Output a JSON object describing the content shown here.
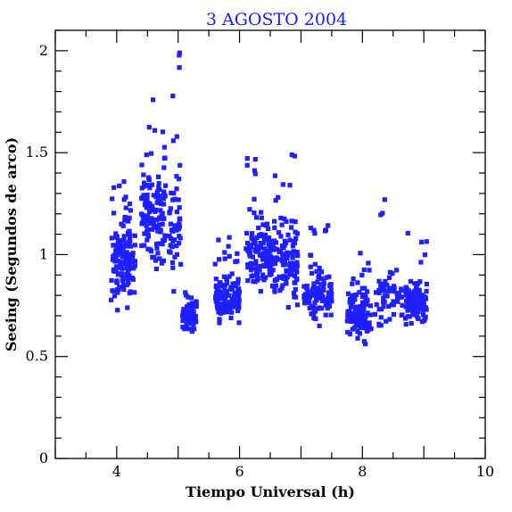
{
  "chart_data": {
    "type": "scatter",
    "title": "3 AGOSTO 2004",
    "xlabel": "Tiempo Universal (h)",
    "ylabel": "Seeing (Segundos de arco)",
    "xlim": [
      3,
      10
    ],
    "ylim": [
      0,
      2.1
    ],
    "x_ticks": [
      4,
      6,
      8,
      10
    ],
    "y_ticks": [
      0,
      0.5,
      1,
      1.5,
      2
    ],
    "x_tick_labels": [
      "4",
      "6",
      "8",
      "10"
    ],
    "y_tick_labels": [
      "0",
      "0.5",
      "1",
      "1.5",
      "2"
    ],
    "grid": false,
    "marker_color": "#1f1fff",
    "clusters": [
      {
        "x_range": [
          3.9,
          4.3
        ],
        "y_center": 0.96,
        "y_spread": 0.14,
        "y_min": 0.7,
        "y_max": 1.37,
        "count": 150
      },
      {
        "x_range": [
          4.4,
          4.8
        ],
        "y_center": 1.18,
        "y_spread": 0.16,
        "y_min": 0.88,
        "y_max": 1.79,
        "count": 130
      },
      {
        "x_range": [
          4.85,
          5.05
        ],
        "y_center": 1.12,
        "y_spread": 0.16,
        "y_min": 0.75,
        "y_max": 1.99,
        "count": 55
      },
      {
        "x_range": [
          5.05,
          5.3
        ],
        "y_center": 0.7,
        "y_spread": 0.06,
        "y_min": 0.56,
        "y_max": 0.82,
        "count": 60
      },
      {
        "x_range": [
          5.6,
          6.0
        ],
        "y_center": 0.78,
        "y_spread": 0.07,
        "y_min": 0.63,
        "y_max": 1.1,
        "count": 130
      },
      {
        "x_range": [
          6.1,
          6.5
        ],
        "y_center": 1.0,
        "y_spread": 0.1,
        "y_min": 0.74,
        "y_max": 1.49,
        "count": 120
      },
      {
        "x_range": [
          6.5,
          6.95
        ],
        "y_center": 0.98,
        "y_spread": 0.12,
        "y_min": 0.73,
        "y_max": 1.6,
        "count": 130
      },
      {
        "x_range": [
          7.05,
          7.5
        ],
        "y_center": 0.8,
        "y_spread": 0.07,
        "y_min": 0.65,
        "y_max": 1.27,
        "count": 120
      },
      {
        "x_range": [
          7.75,
          8.15
        ],
        "y_center": 0.7,
        "y_spread": 0.07,
        "y_min": 0.5,
        "y_max": 1.01,
        "count": 110
      },
      {
        "x_range": [
          8.2,
          8.65
        ],
        "y_center": 0.8,
        "y_spread": 0.09,
        "y_min": 0.52,
        "y_max": 1.27,
        "count": 60
      },
      {
        "x_range": [
          8.7,
          9.05
        ],
        "y_center": 0.75,
        "y_spread": 0.08,
        "y_min": 0.58,
        "y_max": 1.12,
        "count": 100
      }
    ]
  }
}
